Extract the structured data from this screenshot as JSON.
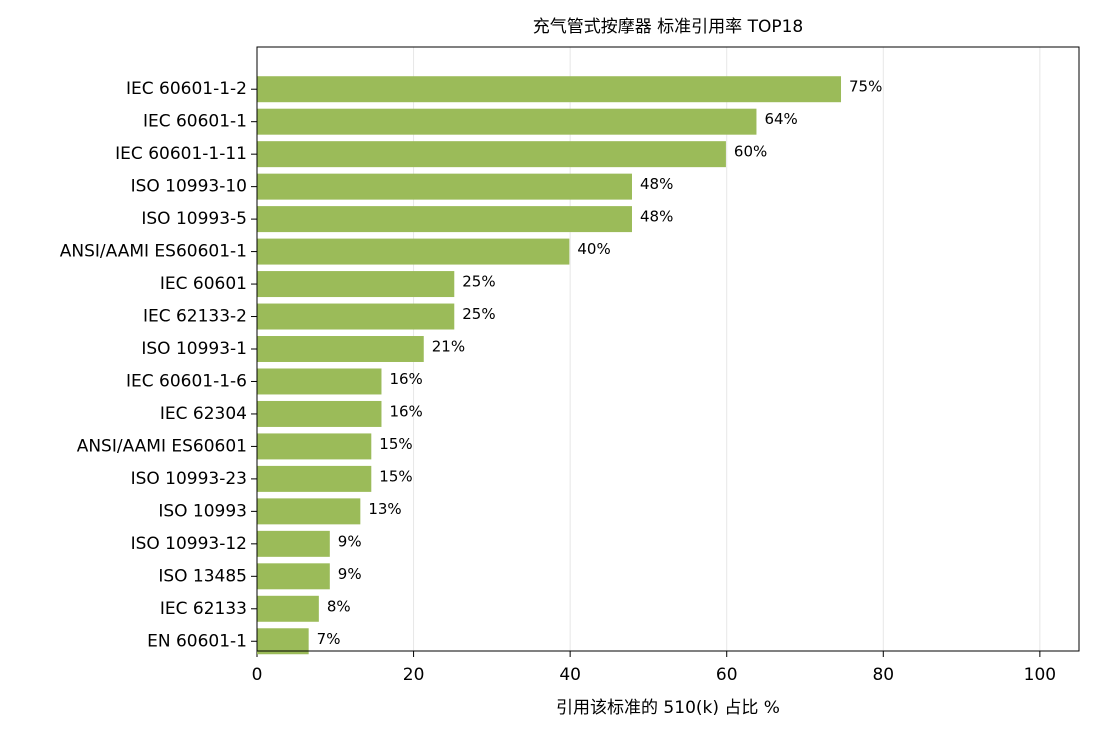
{
  "chart_data": {
    "type": "barh",
    "title": "充气管式按摩器 标准引用率 TOP18",
    "x_label": "引用该标准的 510(k) 占比 %",
    "categories": [
      "IEC 60601-1-2",
      "IEC 60601-1",
      "IEC 60601-1-11",
      "ISO 10993-10",
      "ISO 10993-5",
      "ANSI/AAMI ES60601-1",
      "IEC 60601",
      "IEC 62133-2",
      "ISO 10993-1",
      "IEC 60601-1-6",
      "IEC 62304",
      "ANSI/AAMI ES60601",
      "ISO 10993-23",
      "ISO 10993",
      "ISO 10993-12",
      "ISO 13485",
      "IEC 62133",
      "EN 60601-1"
    ],
    "values": [
      74.6,
      63.8,
      59.9,
      47.9,
      47.9,
      39.9,
      25.2,
      25.2,
      21.3,
      15.9,
      15.9,
      14.6,
      14.6,
      13.2,
      9.3,
      9.3,
      7.9,
      6.6
    ],
    "value_labels": [
      "75%",
      "64%",
      "60%",
      "48%",
      "48%",
      "40%",
      "25%",
      "25%",
      "21%",
      "16%",
      "16%",
      "15%",
      "15%",
      "13%",
      "9%",
      "9%",
      "8%",
      "7%"
    ],
    "color": "#9bbb59",
    "xlim": [
      0,
      105
    ],
    "xticks": [
      0,
      20,
      40,
      60,
      80,
      100
    ],
    "grid": true
  }
}
